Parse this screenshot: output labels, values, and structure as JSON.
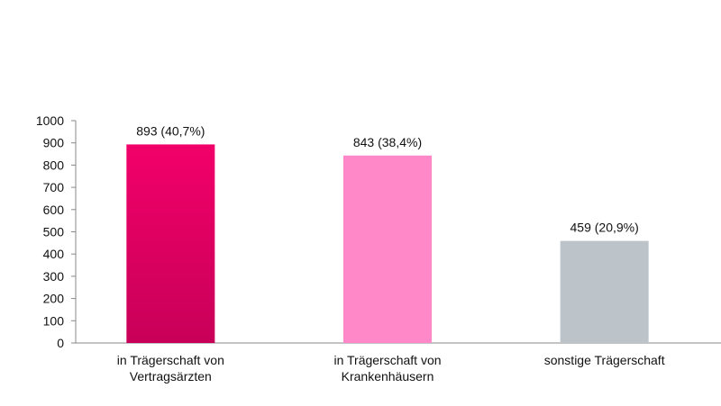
{
  "chart_data": {
    "type": "bar",
    "categories": [
      [
        "in Trägerschaft von",
        "Vertragsärzten"
      ],
      [
        "in Trägerschaft von",
        "Krankenhäusern"
      ],
      [
        "sonstige Trägerschaft"
      ]
    ],
    "values": [
      893,
      843,
      459
    ],
    "data_labels": [
      "893 (40,7%)",
      "843 (38,4%)",
      "459 (20,9%)"
    ],
    "colors": [
      "#e8005e",
      "#ff88c8",
      "#bcc4ca"
    ],
    "gradient_bottom": [
      "#c80058",
      null,
      null
    ],
    "ylim": [
      0,
      1000
    ],
    "yticks": [
      0,
      100,
      200,
      300,
      400,
      500,
      600,
      700,
      800,
      900,
      1000
    ],
    "grid": false,
    "legend": "none"
  }
}
